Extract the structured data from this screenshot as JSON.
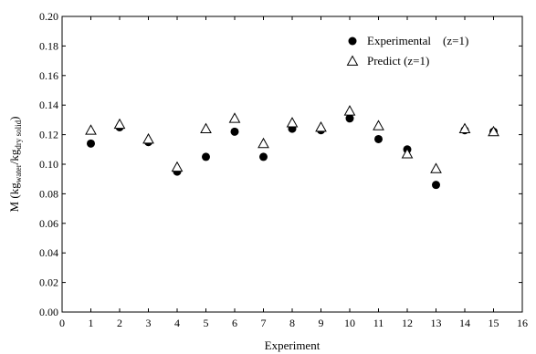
{
  "chart_data": {
    "type": "scatter",
    "xlabel": "Experiment",
    "ylabel_main": "M (kg",
    "ylabel_sub1": "water",
    "ylabel_mid": "/kg",
    "ylabel_sub2": "dry solid",
    "ylabel_end": ")",
    "xlim": [
      0,
      16
    ],
    "ylim": [
      0,
      0.2
    ],
    "x_ticks": [
      "0",
      "1",
      "2",
      "3",
      "4",
      "5",
      "6",
      "7",
      "8",
      "9",
      "10",
      "11",
      "12",
      "13",
      "14",
      "15",
      "16"
    ],
    "y_ticks": [
      "0.00",
      "0.02",
      "0.04",
      "0.06",
      "0.08",
      "0.10",
      "0.12",
      "0.14",
      "0.16",
      "0.18",
      "0.20"
    ],
    "grid": false,
    "legend_position": "top-right",
    "series": [
      {
        "name": "Experimental    (z=1)",
        "marker": "filled-circle",
        "color": "#000000",
        "x": [
          1,
          2,
          3,
          4,
          5,
          6,
          7,
          8,
          9,
          10,
          11,
          12,
          13,
          14,
          15
        ],
        "y": [
          0.114,
          0.125,
          0.115,
          0.095,
          0.105,
          0.122,
          0.105,
          0.124,
          0.123,
          0.131,
          0.117,
          0.11,
          0.086,
          0.123,
          0.122
        ]
      },
      {
        "name": "Predict (z=1)",
        "marker": "open-triangle",
        "color": "#000000",
        "x": [
          1,
          2,
          3,
          4,
          5,
          6,
          7,
          8,
          9,
          10,
          11,
          12,
          13,
          14,
          15
        ],
        "y": [
          0.123,
          0.127,
          0.117,
          0.098,
          0.124,
          0.131,
          0.114,
          0.128,
          0.125,
          0.136,
          0.126,
          0.107,
          0.097,
          0.124,
          0.122
        ]
      }
    ]
  }
}
